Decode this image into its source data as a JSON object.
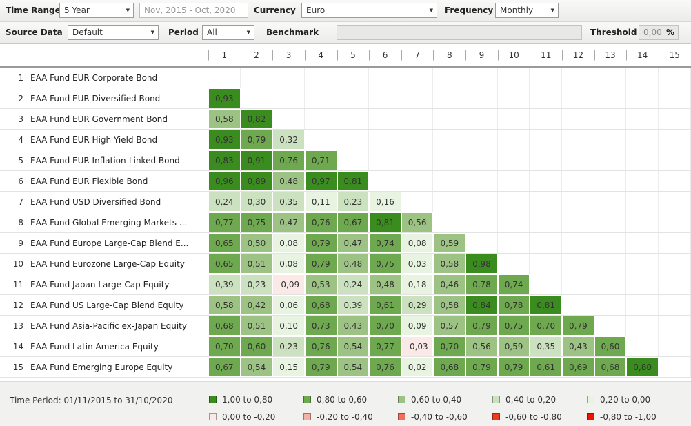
{
  "toolbar": {
    "time_range_label": "Time Range",
    "time_range_value": "5 Year",
    "date_range": "Nov, 2015 - Oct, 2020",
    "currency_label": "Currency",
    "currency_value": "Euro",
    "frequency_label": "Frequency",
    "frequency_value": "Monthly",
    "source_data_label": "Source Data",
    "source_data_value": "Default",
    "period_label": "Period",
    "period_value": "All",
    "benchmark_label": "Benchmark",
    "benchmark_value": "",
    "threshold_label": "Threshold",
    "threshold_value": "0,00",
    "percent_label": "%"
  },
  "matrix": {
    "column_headers": [
      "1",
      "2",
      "3",
      "4",
      "5",
      "6",
      "7",
      "8",
      "9",
      "10",
      "11",
      "12",
      "13",
      "14",
      "15"
    ],
    "rows": [
      {
        "num": "1",
        "label": "EAA Fund EUR Corporate Bond",
        "values": []
      },
      {
        "num": "2",
        "label": "EAA Fund EUR Diversified Bond",
        "values": [
          "0,93"
        ]
      },
      {
        "num": "3",
        "label": "EAA Fund EUR Government Bond",
        "values": [
          "0,58",
          "0,82"
        ]
      },
      {
        "num": "4",
        "label": "EAA Fund EUR High Yield Bond",
        "values": [
          "0,93",
          "0,79",
          "0,32"
        ]
      },
      {
        "num": "5",
        "label": "EAA Fund EUR Inflation-Linked Bond",
        "values": [
          "0,83",
          "0,91",
          "0,76",
          "0,71"
        ]
      },
      {
        "num": "6",
        "label": "EAA Fund EUR Flexible Bond",
        "values": [
          "0,96",
          "0,89",
          "0,48",
          "0,97",
          "0,81"
        ]
      },
      {
        "num": "7",
        "label": "EAA Fund USD Diversified Bond",
        "values": [
          "0,24",
          "0,30",
          "0,35",
          "0,11",
          "0,23",
          "0,16"
        ]
      },
      {
        "num": "8",
        "label": "EAA Fund Global Emerging Markets ...",
        "values": [
          "0,77",
          "0,75",
          "0,47",
          "0,76",
          "0,67",
          "0,81",
          "0,56"
        ]
      },
      {
        "num": "9",
        "label": "EAA Fund Europe Large-Cap Blend E...",
        "values": [
          "0,65",
          "0,50",
          "0,08",
          "0,79",
          "0,47",
          "0,74",
          "0,08",
          "0,59"
        ]
      },
      {
        "num": "10",
        "label": "EAA Fund Eurozone Large-Cap Equity",
        "values": [
          "0,65",
          "0,51",
          "0,08",
          "0,79",
          "0,48",
          "0,75",
          "0,03",
          "0,58",
          "0,98"
        ]
      },
      {
        "num": "11",
        "label": "EAA Fund Japan Large-Cap Equity",
        "values": [
          "0,39",
          "0,23",
          "-0,09",
          "0,53",
          "0,24",
          "0,48",
          "0,18",
          "0,46",
          "0,78",
          "0,74"
        ]
      },
      {
        "num": "12",
        "label": "EAA Fund US Large-Cap Blend Equity",
        "values": [
          "0,58",
          "0,42",
          "0,06",
          "0,68",
          "0,39",
          "0,61",
          "0,29",
          "0,58",
          "0,84",
          "0,78",
          "0,81"
        ]
      },
      {
        "num": "13",
        "label": "EAA Fund Asia-Pacific ex-Japan Equity",
        "values": [
          "0,68",
          "0,51",
          "0,10",
          "0,73",
          "0,43",
          "0,70",
          "0,09",
          "0,57",
          "0,79",
          "0,75",
          "0,70",
          "0,79"
        ]
      },
      {
        "num": "14",
        "label": "EAA Fund Latin America Equity",
        "values": [
          "0,70",
          "0,60",
          "0,23",
          "0,76",
          "0,54",
          "0,77",
          "-0,03",
          "0,70",
          "0,56",
          "0,59",
          "0,35",
          "0,43",
          "0,60"
        ]
      },
      {
        "num": "15",
        "label": "EAA Fund Emerging Europe Equity",
        "values": [
          "0,67",
          "0,54",
          "0,15",
          "0,79",
          "0,54",
          "0,76",
          "0,02",
          "0,68",
          "0,79",
          "0,79",
          "0,61",
          "0,69",
          "0,68",
          "0,80"
        ]
      }
    ]
  },
  "legend": {
    "time_period": "Time Period: 01/11/2015 to 31/10/2020",
    "items": [
      {
        "label": "1,00 to 0,80",
        "color": "#3b8c1e"
      },
      {
        "label": "0,80 to 0,60",
        "color": "#6ea84f"
      },
      {
        "label": "0,60 to 0,40",
        "color": "#9dc384"
      },
      {
        "label": "0,40 to 0,20",
        "color": "#cce1bf"
      },
      {
        "label": "0,20 to 0,00",
        "color": "#e9f3e2"
      },
      {
        "label": "0,00 to -0,20",
        "color": "#fbe9e7"
      },
      {
        "label": "-0,20 to -0,40",
        "color": "#f2b1a6"
      },
      {
        "label": "-0,40 to -0,60",
        "color": "#f0705b"
      },
      {
        "label": "-0,60 to -0,80",
        "color": "#ed3b20"
      },
      {
        "label": "-0,80 to -1,00",
        "color": "#ee1200"
      }
    ]
  },
  "chart_data": {
    "type": "heatmap",
    "row_labels": [
      "EAA Fund EUR Corporate Bond",
      "EAA Fund EUR Diversified Bond",
      "EAA Fund EUR Government Bond",
      "EAA Fund EUR High Yield Bond",
      "EAA Fund EUR Inflation-Linked Bond",
      "EAA Fund EUR Flexible Bond",
      "EAA Fund USD Diversified Bond",
      "EAA Fund Global Emerging Markets ...",
      "EAA Fund Europe Large-Cap Blend E...",
      "EAA Fund Eurozone Large-Cap Equity",
      "EAA Fund Japan Large-Cap Equity",
      "EAA Fund US Large-Cap Blend Equity",
      "EAA Fund Asia-Pacific ex-Japan Equity",
      "EAA Fund Latin America Equity",
      "EAA Fund Emerging Europe Equity"
    ],
    "column_labels": [
      "1",
      "2",
      "3",
      "4",
      "5",
      "6",
      "7",
      "8",
      "9",
      "10",
      "11",
      "12",
      "13",
      "14",
      "15"
    ],
    "values": [
      [],
      [
        0.93
      ],
      [
        0.58,
        0.82
      ],
      [
        0.93,
        0.79,
        0.32
      ],
      [
        0.83,
        0.91,
        0.76,
        0.71
      ],
      [
        0.96,
        0.89,
        0.48,
        0.97,
        0.81
      ],
      [
        0.24,
        0.3,
        0.35,
        0.11,
        0.23,
        0.16
      ],
      [
        0.77,
        0.75,
        0.47,
        0.76,
        0.67,
        0.81,
        0.56
      ],
      [
        0.65,
        0.5,
        0.08,
        0.79,
        0.47,
        0.74,
        0.08,
        0.59
      ],
      [
        0.65,
        0.51,
        0.08,
        0.79,
        0.48,
        0.75,
        0.03,
        0.58,
        0.98
      ],
      [
        0.39,
        0.23,
        -0.09,
        0.53,
        0.24,
        0.48,
        0.18,
        0.46,
        0.78,
        0.74
      ],
      [
        0.58,
        0.42,
        0.06,
        0.68,
        0.39,
        0.61,
        0.29,
        0.58,
        0.84,
        0.78,
        0.81
      ],
      [
        0.68,
        0.51,
        0.1,
        0.73,
        0.43,
        0.7,
        0.09,
        0.57,
        0.79,
        0.75,
        0.7,
        0.79
      ],
      [
        0.7,
        0.6,
        0.23,
        0.76,
        0.54,
        0.77,
        -0.03,
        0.7,
        0.56,
        0.59,
        0.35,
        0.43,
        0.6
      ],
      [
        0.67,
        0.54,
        0.15,
        0.79,
        0.54,
        0.76,
        0.02,
        0.68,
        0.79,
        0.79,
        0.61,
        0.69,
        0.68,
        0.8
      ]
    ],
    "value_range": [
      -1.0,
      1.0
    ],
    "bucket_thresholds": [
      0.8,
      0.6,
      0.4,
      0.2,
      0.0,
      -0.2,
      -0.4,
      -0.6,
      -0.8
    ]
  }
}
